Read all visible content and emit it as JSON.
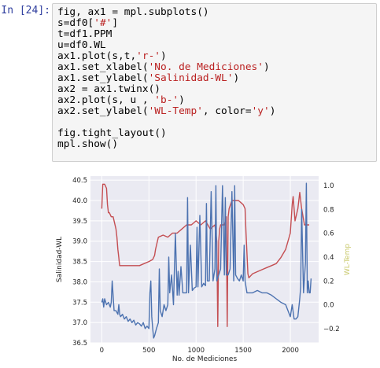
{
  "cell": {
    "prompt": "In [24]:",
    "code": [
      [
        {
          "t": "fig, ax1 = mpl.subplots()"
        }
      ],
      [
        {
          "t": "s=df0["
        },
        {
          "t": "'#'",
          "c": "str"
        },
        {
          "t": "]"
        }
      ],
      [
        {
          "t": "t=df1.PPM"
        }
      ],
      [
        {
          "t": "u=df0.WL"
        }
      ],
      [
        {
          "t": "ax1.plot(s,t,"
        },
        {
          "t": "'r-'",
          "c": "str"
        },
        {
          "t": ")"
        }
      ],
      [
        {
          "t": "ax1.set_xlabel("
        },
        {
          "t": "'No. de Mediciones'",
          "c": "str"
        },
        {
          "t": ")"
        }
      ],
      [
        {
          "t": "ax1.set_ylabel("
        },
        {
          "t": "'Salinidad-WL'",
          "c": "str"
        },
        {
          "t": ")"
        }
      ],
      [
        {
          "t": "ax2 = ax1.twinx()"
        }
      ],
      [
        {
          "t": "ax2.plot(s, u , "
        },
        {
          "t": "'b-'",
          "c": "str"
        },
        {
          "t": ")"
        }
      ],
      [
        {
          "t": "ax2.set_ylabel("
        },
        {
          "t": "'WL-Temp'",
          "c": "str"
        },
        {
          "t": ", color="
        },
        {
          "t": "'y'",
          "c": "str"
        },
        {
          "t": ")"
        }
      ],
      [],
      [
        {
          "t": "fig.tight_layout()"
        }
      ],
      [
        {
          "t": "mpl.show()"
        }
      ]
    ]
  },
  "chart_data": {
    "type": "line",
    "xlabel": "No. de Mediciones",
    "ylabel": "Salinidad-WL",
    "y2label": "WL-Temp",
    "xlim": [
      -120,
      2300
    ],
    "ylim": [
      36.5,
      40.6
    ],
    "y2lim": [
      -0.32,
      1.08
    ],
    "xticks": [
      0,
      500,
      1000,
      1500,
      2000
    ],
    "yticks": [
      36.5,
      37.0,
      37.5,
      38.0,
      38.5,
      39.0,
      39.5,
      40.0,
      40.5
    ],
    "ytick_labels": [
      "36.5",
      "37.0",
      "37.5",
      "38.0",
      "38.5",
      "39.0",
      "39.5",
      "40.0",
      "40.5"
    ],
    "y2ticks": [
      -0.2,
      0.0,
      0.2,
      0.4,
      0.6,
      0.8,
      1.0
    ],
    "y2tick_labels": [
      "−0.2",
      "0.0",
      "0.2",
      "0.4",
      "0.6",
      "0.8",
      "1.0"
    ],
    "grid": true,
    "colors": {
      "red": "#c44e52",
      "blue": "#4c72b0",
      "y2label": "#c8c86a",
      "background": "#eaeaf2"
    },
    "series": [
      {
        "axis": "left",
        "color": "#c44e52",
        "x": [
          0,
          10,
          30,
          50,
          60,
          70,
          80,
          100,
          120,
          150,
          160,
          170,
          180,
          185,
          190,
          200,
          220,
          250,
          280,
          300,
          350,
          400,
          450,
          500,
          540,
          560,
          570,
          580,
          600,
          650,
          700,
          750,
          800,
          850,
          900,
          950,
          1000,
          1050,
          1100,
          1150,
          1200,
          1210,
          1220,
          1230,
          1240,
          1250,
          1260,
          1270,
          1300,
          1320,
          1330,
          1340,
          1350,
          1380,
          1400,
          1450,
          1500,
          1520,
          1530,
          1540,
          1550,
          1560,
          1580,
          1600,
          1650,
          1700,
          1750,
          1800,
          1850,
          1900,
          1950,
          2000,
          2020,
          2030,
          2050,
          2080,
          2100,
          2120,
          2150,
          2180,
          2200
        ],
        "y": [
          39.8,
          40.4,
          40.4,
          40.3,
          39.9,
          39.7,
          39.7,
          39.6,
          39.6,
          39.3,
          39.1,
          38.8,
          38.6,
          38.5,
          38.4,
          38.4,
          38.4,
          38.4,
          38.4,
          38.4,
          38.4,
          38.4,
          38.45,
          38.5,
          38.55,
          38.65,
          38.8,
          38.9,
          39.1,
          39.15,
          39.1,
          39.2,
          39.2,
          39.3,
          39.4,
          39.4,
          39.5,
          39.4,
          39.5,
          39.3,
          39.4,
          39.2,
          39.0,
          36.9,
          39.0,
          39.3,
          39.4,
          39.4,
          39.4,
          39.6,
          36.9,
          39.6,
          39.8,
          40.0,
          40.0,
          40.0,
          39.9,
          39.8,
          39.2,
          38.7,
          38.2,
          38.1,
          38.15,
          38.2,
          38.25,
          38.3,
          38.35,
          38.4,
          38.45,
          38.6,
          38.8,
          39.2,
          39.9,
          40.1,
          39.5,
          39.8,
          40.2,
          39.8,
          39.4,
          39.4,
          39.4
        ]
      },
      {
        "axis": "right",
        "color": "#4c72b0",
        "x": [
          0,
          10,
          20,
          30,
          50,
          70,
          90,
          100,
          110,
          130,
          150,
          170,
          180,
          190,
          200,
          220,
          240,
          260,
          280,
          300,
          320,
          340,
          360,
          380,
          400,
          420,
          440,
          460,
          480,
          500,
          510,
          520,
          530,
          540,
          550,
          560,
          580,
          600,
          610,
          620,
          640,
          660,
          680,
          700,
          710,
          720,
          740,
          760,
          780,
          800,
          810,
          820,
          840,
          860,
          880,
          900,
          910,
          920,
          940,
          960,
          980,
          1000,
          1010,
          1020,
          1040,
          1060,
          1080,
          1100,
          1110,
          1120,
          1140,
          1160,
          1180,
          1200,
          1210,
          1220,
          1240,
          1260,
          1280,
          1300,
          1310,
          1320,
          1340,
          1360,
          1380,
          1400,
          1410,
          1420,
          1440,
          1460,
          1480,
          1500,
          1510,
          1520,
          1540,
          1560,
          1600,
          1650,
          1700,
          1750,
          1800,
          1850,
          1900,
          1950,
          2000,
          2020,
          2040,
          2060,
          2080,
          2100,
          2110,
          2120,
          2140,
          2160,
          2170,
          2180,
          2190,
          2200,
          2210,
          2220
        ],
        "y": [
          0.02,
          0.05,
          -0.02,
          0.05,
          0.0,
          0.02,
          -0.02,
          0.02,
          0.2,
          -0.05,
          -0.05,
          -0.08,
          0.0,
          -0.08,
          -0.1,
          -0.08,
          -0.12,
          -0.1,
          -0.14,
          -0.12,
          -0.15,
          -0.13,
          -0.17,
          -0.15,
          -0.16,
          -0.18,
          -0.15,
          -0.2,
          -0.18,
          -0.2,
          0.1,
          0.2,
          -0.1,
          -0.2,
          -0.28,
          -0.26,
          -0.2,
          -0.15,
          0.3,
          -0.05,
          -0.1,
          0.0,
          -0.05,
          0.0,
          0.4,
          0.1,
          0.25,
          0.0,
          0.6,
          0.08,
          0.28,
          0.08,
          0.32,
          0.1,
          0.1,
          0.1,
          0.9,
          0.1,
          0.5,
          0.12,
          0.14,
          0.15,
          0.65,
          0.15,
          0.75,
          0.15,
          0.18,
          0.16,
          0.85,
          0.2,
          0.2,
          0.95,
          0.2,
          0.3,
          1.0,
          0.2,
          0.25,
          0.3,
          1.0,
          0.25,
          0.9,
          0.25,
          0.25,
          0.3,
          0.95,
          0.2,
          1.0,
          0.25,
          0.22,
          0.2,
          0.25,
          0.2,
          0.5,
          0.2,
          0.1,
          0.1,
          0.1,
          0.12,
          0.1,
          0.1,
          0.08,
          0.05,
          0.02,
          0.0,
          -0.1,
          0.0,
          -0.12,
          -0.12,
          -0.1,
          0.05,
          0.15,
          0.8,
          0.1,
          0.35,
          1.02,
          0.1,
          0.2,
          0.1,
          0.1,
          0.22
        ]
      }
    ]
  }
}
